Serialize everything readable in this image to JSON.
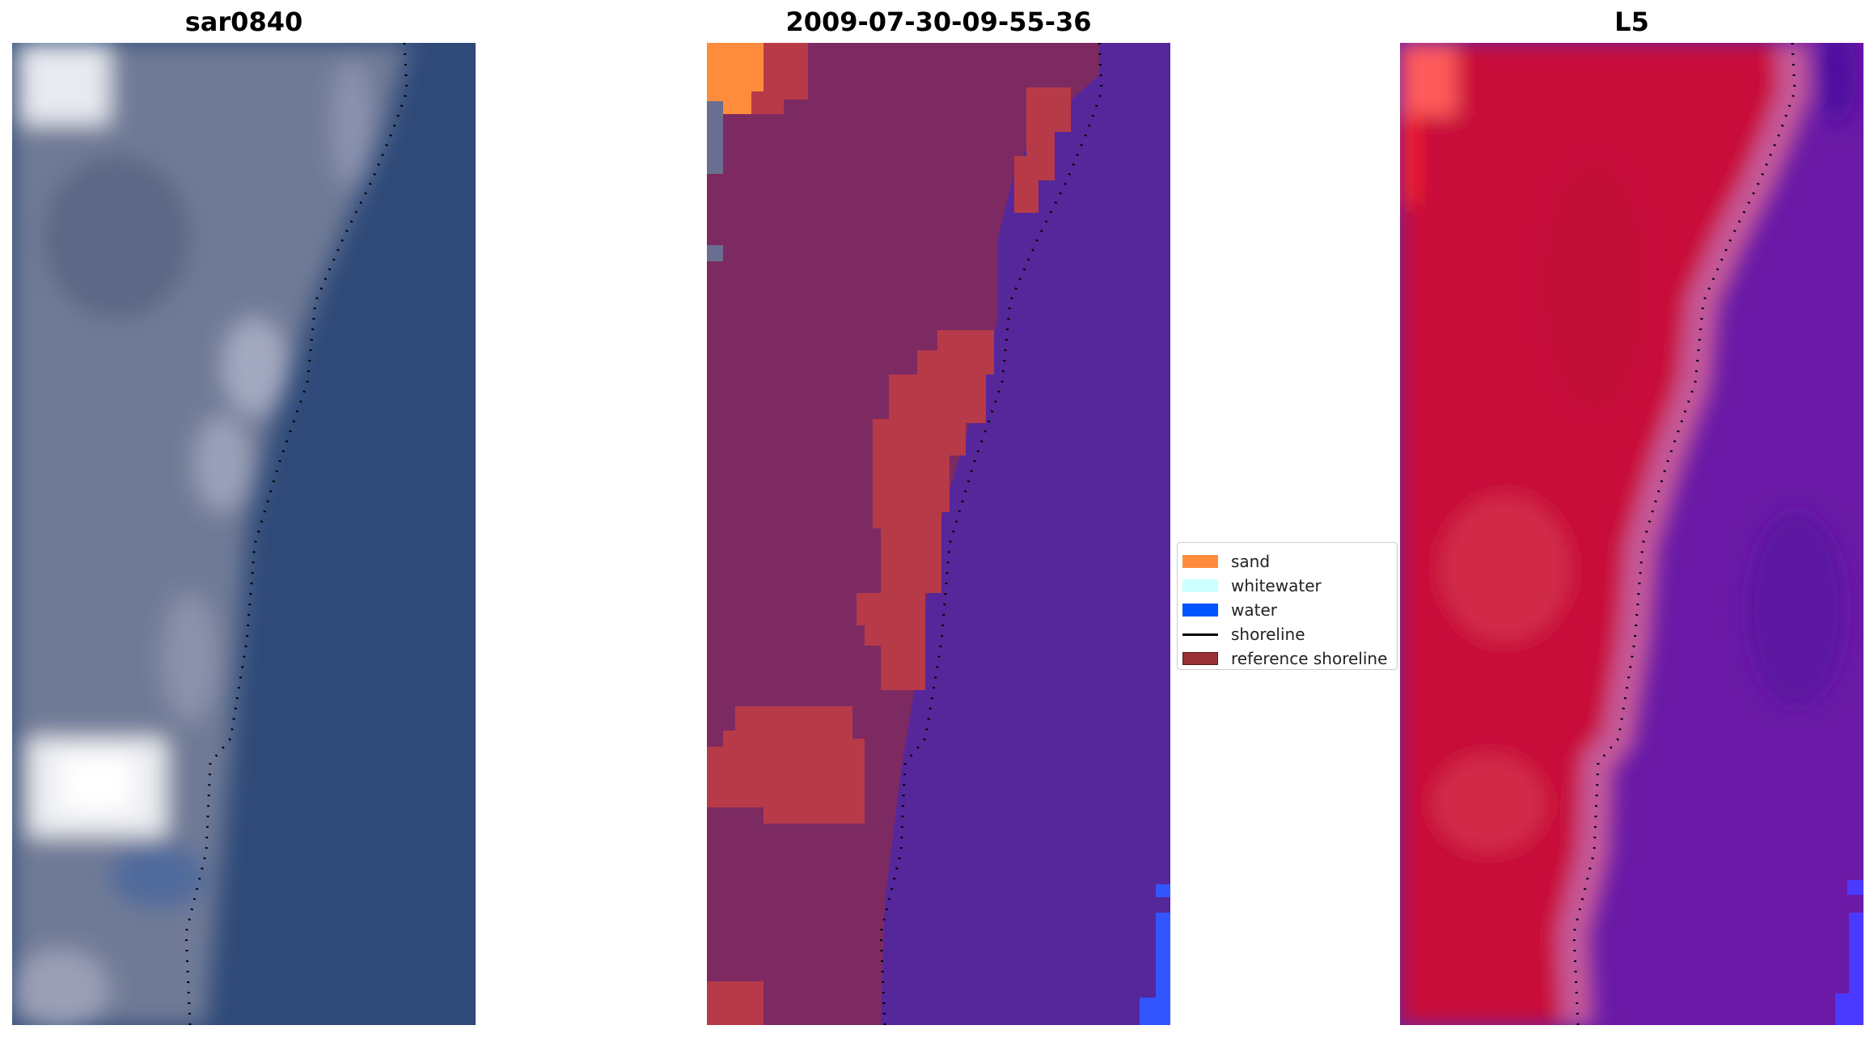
{
  "panels": [
    {
      "title": "sar0840"
    },
    {
      "title": "2009-07-30-09-55-36"
    },
    {
      "title": "L5"
    }
  ],
  "legend": {
    "items": [
      {
        "label": "sand",
        "color": "#ff8c3c"
      },
      {
        "label": "whitewater",
        "color": "#ccffff"
      },
      {
        "label": "water",
        "color": "#0055ff"
      },
      {
        "label": "shoreline",
        "color": "#000000"
      },
      {
        "label": "reference shoreline",
        "color": "#983235"
      }
    ]
  },
  "colors": {
    "land_rgb": "#707a96",
    "ocean_rgb": "#2f4a78",
    "land_class": "#7d2a62",
    "sand_overlay": "#b73a48",
    "sand_bright": "#ff8c3c",
    "water_class": "#55279a",
    "water_blue": "#3355ff",
    "land_index": "#c8103a",
    "water_index": "#6a1aa6",
    "transition_index": "#c45a9a"
  }
}
